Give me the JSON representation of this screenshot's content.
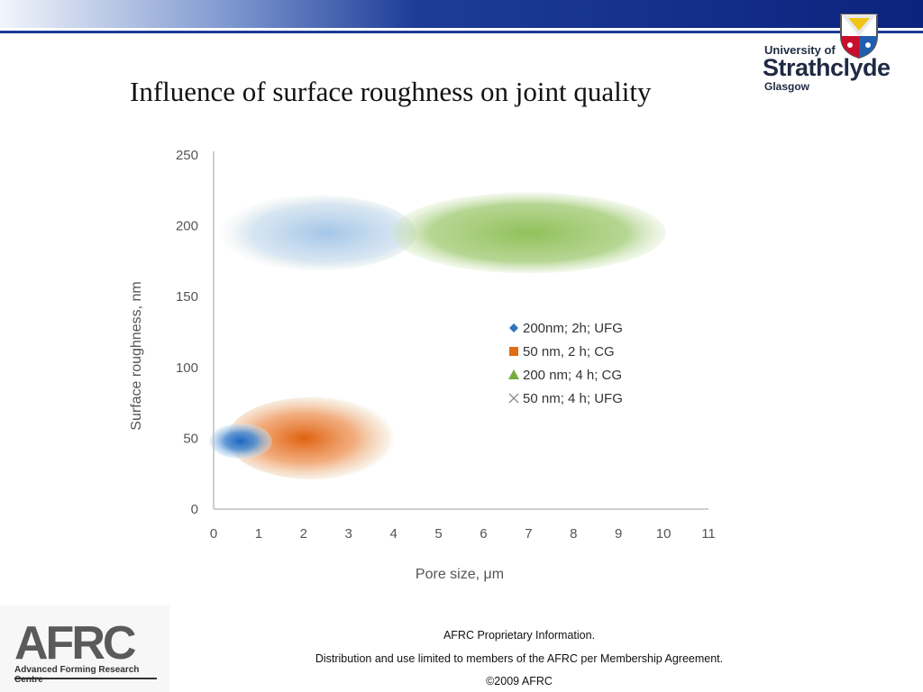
{
  "slide": {
    "title": "Influence of surface roughness on joint quality"
  },
  "logo": {
    "line1": "University of",
    "line2": "Strathclyde",
    "line3": "Glasgow"
  },
  "afrc": {
    "big": "AFRC",
    "small": "Advanced Forming Research Centre"
  },
  "footer": {
    "line1": "AFRC Proprietary Information.",
    "line2": "Distribution and use limited to members of the AFRC per Membership Agreement.",
    "line3": "©2009 AFRC"
  },
  "colors": {
    "blue": "#2e75b6",
    "orange": "#e26b16",
    "green": "#77ac3e",
    "gray": "#8c8c8c",
    "axis": "#bfbfbf",
    "text": "#555555"
  },
  "chart_data": {
    "type": "scatter",
    "xlabel": "Pore size, μm",
    "ylabel": "Surface roughness, nm",
    "xlim": [
      0,
      11
    ],
    "ylim": [
      0,
      250
    ],
    "xticks": [
      "0",
      "1",
      "2",
      "3",
      "4",
      "5",
      "6",
      "7",
      "8",
      "9",
      "10",
      "11"
    ],
    "yticks": [
      "0",
      "50",
      "100",
      "150",
      "200",
      "250"
    ],
    "grid": false,
    "legend_position": "right",
    "series": [
      {
        "name": "200nm; 2h; UFG",
        "marker": "diamond",
        "color": "#2e75b6",
        "regions": [
          {
            "x_center": 0.6,
            "y_center": 48,
            "x_range": [
              0,
              1.4
            ],
            "y_range": [
              35,
              60
            ]
          },
          {
            "x_center": 2.3,
            "y_center": 195,
            "x_range": [
              0,
              4.4
            ],
            "y_range": [
              167,
              220
            ]
          }
        ]
      },
      {
        "name": "50 nm, 2 h; CG",
        "marker": "square",
        "color": "#e26b16",
        "regions": [
          {
            "x_center": 2.2,
            "y_center": 50,
            "x_range": [
              0.6,
              4.4
            ],
            "y_range": [
              22,
              80
            ]
          }
        ]
      },
      {
        "name": "200 nm; 4 h; CG",
        "marker": "triangle",
        "color": "#77ac3e",
        "regions": [
          {
            "x_center": 7.0,
            "y_center": 195,
            "x_range": [
              4.2,
              10.3
            ],
            "y_range": [
              165,
              222
            ]
          }
        ]
      },
      {
        "name": "50 nm; 4 h; UFG",
        "marker": "x",
        "color": "#8c8c8c",
        "regions": []
      }
    ]
  }
}
